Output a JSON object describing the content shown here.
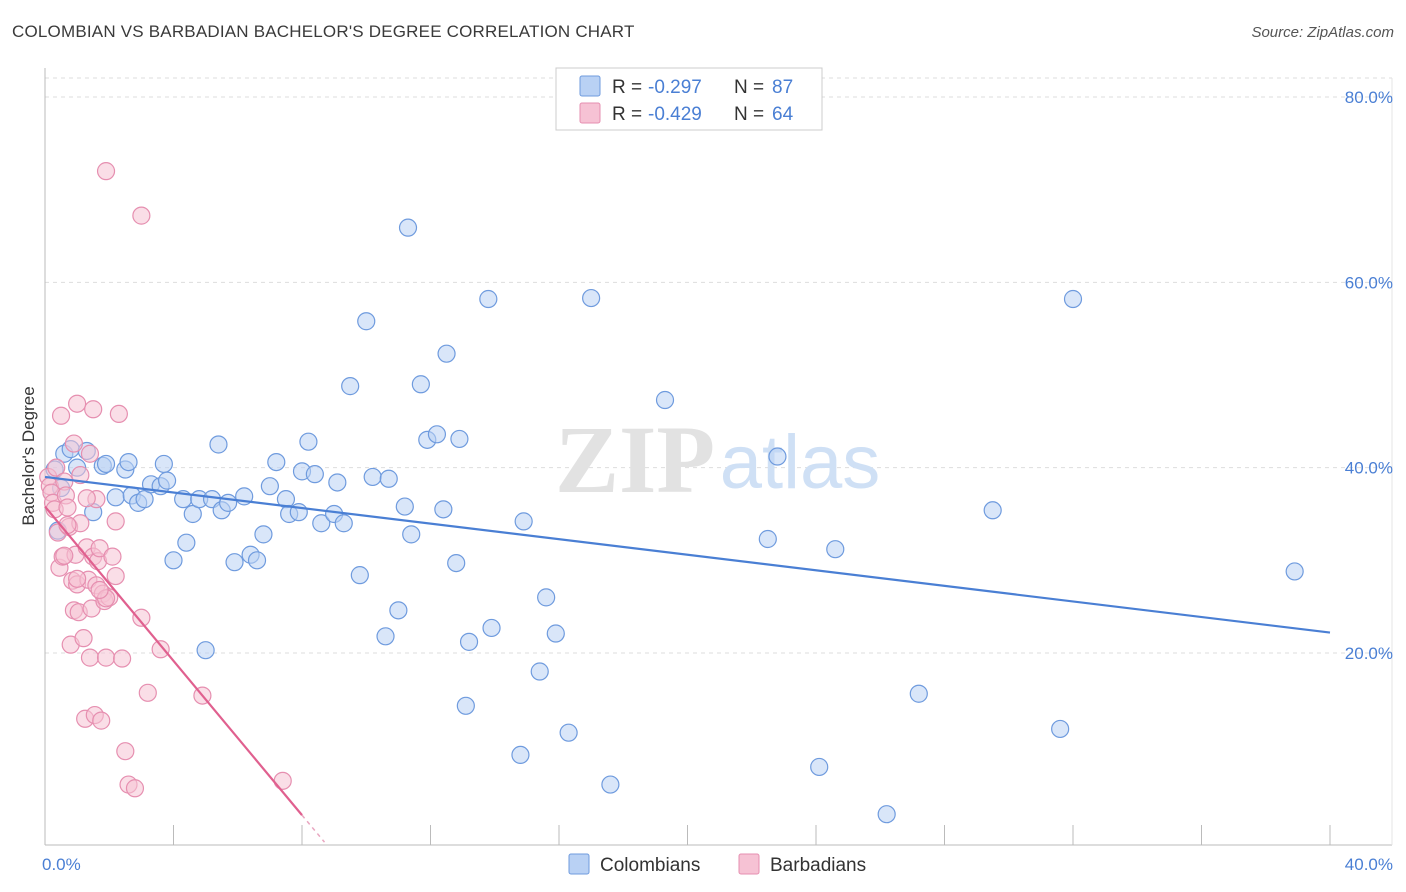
{
  "title": "COLOMBIAN VS BARBADIAN BACHELOR'S DEGREE CORRELATION CHART",
  "source": "Source: ZipAtlas.com",
  "watermark": {
    "zip": "ZIP",
    "atlas": "atlas"
  },
  "colors": {
    "blue": "#4a7fd4",
    "blue_fill": "#b9d1f4",
    "blue_stroke": "#6f9bde",
    "pink": "#e0608f",
    "pink_fill": "#f6c2d4",
    "pink_stroke": "#e68fb0",
    "grid": "#dddddd",
    "axis": "#bbbbbb",
    "value_text": "#4a7fd4"
  },
  "legend_top": [
    {
      "r_label": "R =",
      "r_value": "-0.297",
      "n_label": "N =",
      "n_value": "87",
      "series": "Colombians"
    },
    {
      "r_label": "R =",
      "r_value": "-0.429",
      "n_label": "N =",
      "n_value": "64",
      "series": "Barbadians"
    }
  ],
  "legend_bottom": [
    "Colombians",
    "Barbadians"
  ],
  "chart_data": {
    "type": "scatter",
    "title": "COLOMBIAN VS BARBADIAN BACHELOR'S DEGREE CORRELATION CHART",
    "xlabel": "",
    "ylabel": "Bachelor's Degree",
    "xlim": [
      0,
      40
    ],
    "ylim": [
      0,
      83
    ],
    "x_tick_labels": [
      "0.0%",
      "40.0%"
    ],
    "y_ticks": [
      20,
      40,
      60,
      80
    ],
    "y_tick_labels": [
      "20.0%",
      "40.0%",
      "60.0%",
      "80.0%"
    ],
    "grid": true,
    "legend": "top-center",
    "series": [
      {
        "name": "Colombians",
        "r": -0.297,
        "n": 87,
        "trend": [
          [
            0,
            39.0
          ],
          [
            40,
            22.2
          ]
        ],
        "points": [
          [
            0.3,
            39.8
          ],
          [
            0.6,
            41.5
          ],
          [
            0.8,
            42.0
          ],
          [
            1.0,
            40.0
          ],
          [
            1.3,
            41.8
          ],
          [
            1.5,
            35.2
          ],
          [
            1.8,
            40.2
          ],
          [
            2.2,
            36.8
          ],
          [
            2.5,
            39.8
          ],
          [
            2.7,
            37.0
          ],
          [
            2.6,
            40.6
          ],
          [
            2.9,
            36.2
          ],
          [
            3.1,
            36.6
          ],
          [
            3.3,
            38.2
          ],
          [
            3.6,
            38.0
          ],
          [
            3.7,
            40.4
          ],
          [
            3.8,
            38.6
          ],
          [
            4.0,
            30.0
          ],
          [
            4.3,
            36.6
          ],
          [
            4.4,
            31.9
          ],
          [
            4.6,
            35.0
          ],
          [
            4.8,
            36.6
          ],
          [
            5.0,
            20.3
          ],
          [
            5.2,
            36.6
          ],
          [
            5.4,
            42.5
          ],
          [
            5.5,
            35.4
          ],
          [
            5.7,
            36.2
          ],
          [
            5.9,
            29.8
          ],
          [
            6.2,
            36.9
          ],
          [
            6.4,
            30.6
          ],
          [
            6.6,
            30.0
          ],
          [
            6.8,
            32.8
          ],
          [
            7.0,
            38.0
          ],
          [
            7.2,
            40.6
          ],
          [
            7.5,
            36.6
          ],
          [
            7.6,
            35.0
          ],
          [
            7.9,
            35.2
          ],
          [
            8.0,
            39.6
          ],
          [
            8.2,
            42.8
          ],
          [
            8.4,
            39.3
          ],
          [
            8.6,
            34.0
          ],
          [
            9.0,
            35.0
          ],
          [
            9.1,
            38.4
          ],
          [
            9.3,
            34.0
          ],
          [
            9.5,
            48.8
          ],
          [
            9.8,
            28.4
          ],
          [
            10.0,
            55.8
          ],
          [
            10.2,
            39.0
          ],
          [
            10.6,
            21.8
          ],
          [
            10.7,
            38.8
          ],
          [
            11.0,
            24.6
          ],
          [
            11.2,
            35.8
          ],
          [
            11.4,
            32.8
          ],
          [
            11.3,
            65.9
          ],
          [
            11.7,
            49.0
          ],
          [
            11.9,
            43.0
          ],
          [
            12.2,
            43.6
          ],
          [
            12.4,
            35.5
          ],
          [
            12.5,
            52.3
          ],
          [
            12.8,
            29.7
          ],
          [
            12.9,
            43.1
          ],
          [
            13.1,
            14.3
          ],
          [
            13.2,
            21.2
          ],
          [
            13.8,
            58.2
          ],
          [
            13.9,
            22.7
          ],
          [
            14.8,
            9.0
          ],
          [
            14.9,
            34.2
          ],
          [
            15.4,
            18.0
          ],
          [
            15.6,
            26.0
          ],
          [
            15.9,
            22.1
          ],
          [
            16.3,
            11.4
          ],
          [
            17.0,
            58.3
          ],
          [
            17.6,
            5.8
          ],
          [
            19.3,
            47.3
          ],
          [
            22.5,
            32.3
          ],
          [
            22.8,
            41.2
          ],
          [
            24.1,
            7.7
          ],
          [
            24.6,
            31.2
          ],
          [
            26.2,
            2.6
          ],
          [
            27.2,
            15.6
          ],
          [
            29.5,
            35.4
          ],
          [
            31.6,
            11.8
          ],
          [
            32.0,
            58.2
          ],
          [
            38.9,
            28.8
          ],
          [
            0.5,
            37.8
          ],
          [
            0.4,
            33.2
          ],
          [
            1.9,
            40.4
          ]
        ]
      },
      {
        "name": "Barbadians",
        "r": -0.429,
        "n": 64,
        "trend": [
          [
            0,
            35.8
          ],
          [
            8.0,
            2.5
          ]
        ],
        "points": [
          [
            0.1,
            39.0
          ],
          [
            0.15,
            38.0
          ],
          [
            0.2,
            37.3
          ],
          [
            0.25,
            36.2
          ],
          [
            0.3,
            35.5
          ],
          [
            0.35,
            40.0
          ],
          [
            0.4,
            33.0
          ],
          [
            0.45,
            29.2
          ],
          [
            0.5,
            45.6
          ],
          [
            0.55,
            30.4
          ],
          [
            0.6,
            38.5
          ],
          [
            0.65,
            37.0
          ],
          [
            0.7,
            35.7
          ],
          [
            0.75,
            33.6
          ],
          [
            0.8,
            20.9
          ],
          [
            0.85,
            27.8
          ],
          [
            0.9,
            24.6
          ],
          [
            0.95,
            30.6
          ],
          [
            1.0,
            27.4
          ],
          [
            1.05,
            24.4
          ],
          [
            1.1,
            34.0
          ],
          [
            1.2,
            21.6
          ],
          [
            1.25,
            12.9
          ],
          [
            1.3,
            31.4
          ],
          [
            1.35,
            27.9
          ],
          [
            1.4,
            19.5
          ],
          [
            1.45,
            24.8
          ],
          [
            1.5,
            30.4
          ],
          [
            1.55,
            13.3
          ],
          [
            1.6,
            27.3
          ],
          [
            1.65,
            29.9
          ],
          [
            1.7,
            31.3
          ],
          [
            1.75,
            12.7
          ],
          [
            1.8,
            26.4
          ],
          [
            1.85,
            25.6
          ],
          [
            1.9,
            19.5
          ],
          [
            2.0,
            26.0
          ],
          [
            2.1,
            30.4
          ],
          [
            2.2,
            28.3
          ],
          [
            2.4,
            19.4
          ],
          [
            2.5,
            9.4
          ],
          [
            2.6,
            5.8
          ],
          [
            2.8,
            5.4
          ],
          [
            3.0,
            23.8
          ],
          [
            3.2,
            15.7
          ],
          [
            3.6,
            20.4
          ],
          [
            4.9,
            15.4
          ],
          [
            7.4,
            6.2
          ],
          [
            1.9,
            72.0
          ],
          [
            3.0,
            67.2
          ],
          [
            1.0,
            46.9
          ],
          [
            1.5,
            46.3
          ],
          [
            2.3,
            45.8
          ],
          [
            1.6,
            36.6
          ],
          [
            1.1,
            39.2
          ],
          [
            0.7,
            33.8
          ],
          [
            1.3,
            36.7
          ],
          [
            0.6,
            30.5
          ],
          [
            1.9,
            25.9
          ],
          [
            1.0,
            28.0
          ],
          [
            1.4,
            41.5
          ],
          [
            2.2,
            34.2
          ],
          [
            0.9,
            42.6
          ],
          [
            1.7,
            26.8
          ]
        ]
      }
    ]
  }
}
